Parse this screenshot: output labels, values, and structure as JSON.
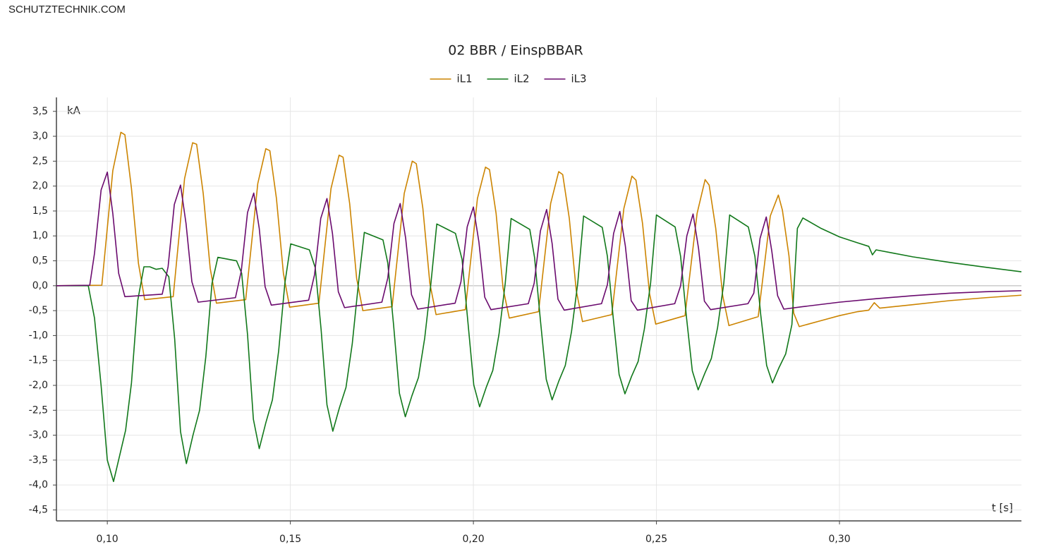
{
  "header": "SCHUTZTECHNIK.COM",
  "chart_data": {
    "type": "line",
    "title": "02 BBR / EinspBBAR",
    "y_label": "kA",
    "x_label": "t [s]",
    "grid": true,
    "legend": "top",
    "xlim": [
      0.0861,
      0.3497
    ],
    "ylim": [
      -4.72,
      3.78
    ],
    "xticks": [
      {
        "value": 0.1,
        "label": "0,10"
      },
      {
        "value": 0.15,
        "label": "0,15"
      },
      {
        "value": 0.2,
        "label": "0,20"
      },
      {
        "value": 0.25,
        "label": "0,25"
      },
      {
        "value": 0.3,
        "label": "0,30"
      }
    ],
    "yticks": [
      {
        "value": -4.5,
        "label": "-4,5"
      },
      {
        "value": -4,
        "label": "-4,0"
      },
      {
        "value": -3.5,
        "label": "-3,5"
      },
      {
        "value": -3,
        "label": "-3,0"
      },
      {
        "value": -2.5,
        "label": "-2,5"
      },
      {
        "value": -2,
        "label": "-2,0"
      },
      {
        "value": -1.5,
        "label": "-1,5"
      },
      {
        "value": -1,
        "label": "-1,0"
      },
      {
        "value": -0.5,
        "label": "-0,5"
      },
      {
        "value": 0,
        "label": "0,0"
      },
      {
        "value": 0.5,
        "label": "0,5"
      },
      {
        "value": 1,
        "label": "1,0"
      },
      {
        "value": 1.5,
        "label": "1,5"
      },
      {
        "value": 2,
        "label": "2,0"
      },
      {
        "value": 2.5,
        "label": "2,5"
      },
      {
        "value": 3,
        "label": "3,0"
      },
      {
        "value": 3.5,
        "label": "3,5"
      }
    ],
    "series": [
      {
        "name": "iL1",
        "color": "#cc8400",
        "x": [
          0.0861,
          0.0985,
          0.1015,
          0.1037,
          0.1048,
          0.1066,
          0.1085,
          0.1102,
          0.118,
          0.1211,
          0.1233,
          0.1244,
          0.1262,
          0.1281,
          0.1298,
          0.1378,
          0.1411,
          0.1433,
          0.1444,
          0.1462,
          0.1481,
          0.1498,
          0.1578,
          0.1611,
          0.1633,
          0.1644,
          0.1662,
          0.1681,
          0.1698,
          0.1778,
          0.1811,
          0.1833,
          0.1844,
          0.1862,
          0.1881,
          0.1898,
          0.1978,
          0.2011,
          0.2033,
          0.2044,
          0.2062,
          0.2081,
          0.2098,
          0.2178,
          0.2211,
          0.2233,
          0.2244,
          0.2262,
          0.2281,
          0.2298,
          0.2378,
          0.2411,
          0.2433,
          0.2444,
          0.2462,
          0.2481,
          0.2498,
          0.2578,
          0.2611,
          0.2633,
          0.2644,
          0.2662,
          0.2681,
          0.2698,
          0.2778,
          0.2811,
          0.2833,
          0.2844,
          0.2862,
          0.2875,
          0.289,
          0.295,
          0.3,
          0.305,
          0.308,
          0.3095,
          0.311,
          0.32,
          0.33,
          0.34,
          0.3497
        ],
        "values": [
          0,
          0.01,
          2.31,
          3.08,
          3.03,
          1.95,
          0.45,
          -0.28,
          -0.22,
          2.15,
          2.87,
          2.84,
          1.85,
          0.35,
          -0.35,
          -0.28,
          2.05,
          2.75,
          2.71,
          1.75,
          0.25,
          -0.43,
          -0.35,
          1.95,
          2.62,
          2.58,
          1.65,
          0.15,
          -0.5,
          -0.42,
          1.85,
          2.5,
          2.45,
          1.55,
          0.05,
          -0.58,
          -0.48,
          1.75,
          2.38,
          2.33,
          1.45,
          -0.05,
          -0.65,
          -0.52,
          1.65,
          2.29,
          2.23,
          1.35,
          -0.1,
          -0.72,
          -0.58,
          1.55,
          2.2,
          2.12,
          1.25,
          -0.15,
          -0.77,
          -0.6,
          1.45,
          2.13,
          2.02,
          1.15,
          -0.2,
          -0.8,
          -0.62,
          1.4,
          1.82,
          1.52,
          0.6,
          -0.55,
          -0.82,
          -0.7,
          -0.6,
          -0.52,
          -0.49,
          -0.34,
          -0.45,
          -0.38,
          -0.3,
          -0.24,
          -0.19
        ]
      },
      {
        "name": "iL2",
        "color": "#11781a",
        "x": [
          0.0861,
          0.0948,
          0.0965,
          0.0983,
          0.1,
          0.1017,
          0.1034,
          0.105,
          0.1066,
          0.1083,
          0.11,
          0.1116,
          0.1133,
          0.115,
          0.1168,
          0.1184,
          0.12,
          0.1216,
          0.1234,
          0.1252,
          0.1269,
          0.1286,
          0.1302,
          0.1353,
          0.1367,
          0.1383,
          0.1399,
          0.1415,
          0.1433,
          0.1451,
          0.1468,
          0.1485,
          0.1501,
          0.1552,
          0.1568,
          0.1584,
          0.16,
          0.1616,
          0.1634,
          0.1652,
          0.1669,
          0.1686,
          0.1702,
          0.1753,
          0.1766,
          0.1782,
          0.1798,
          0.1814,
          0.1832,
          0.185,
          0.1867,
          0.1884,
          0.19,
          0.1951,
          0.1969,
          0.1985,
          0.2001,
          0.2017,
          0.2035,
          0.2053,
          0.207,
          0.2087,
          0.2103,
          0.2154,
          0.2167,
          0.2183,
          0.2199,
          0.2215,
          0.2233,
          0.2251,
          0.2268,
          0.2285,
          0.2301,
          0.2352,
          0.2366,
          0.2382,
          0.2398,
          0.2414,
          0.2432,
          0.245,
          0.2467,
          0.2484,
          0.25,
          0.2551,
          0.2566,
          0.2582,
          0.2598,
          0.2614,
          0.2632,
          0.265,
          0.2667,
          0.2684,
          0.27,
          0.2751,
          0.2769,
          0.2785,
          0.2801,
          0.2817,
          0.2835,
          0.2853,
          0.287,
          0.2885,
          0.29,
          0.295,
          0.3,
          0.305,
          0.308,
          0.309,
          0.31,
          0.315,
          0.32,
          0.33,
          0.34,
          0.3497
        ],
        "values": [
          0,
          0,
          -0.65,
          -2.0,
          -3.5,
          -3.93,
          -3.4,
          -2.9,
          -1.95,
          -0.3,
          0.38,
          0.38,
          0.33,
          0.35,
          0.18,
          -1.07,
          -2.93,
          -3.57,
          -3.0,
          -2.5,
          -1.43,
          0.05,
          0.57,
          0.5,
          0.25,
          -0.98,
          -2.68,
          -3.27,
          -2.75,
          -2.29,
          -1.31,
          0.05,
          0.84,
          0.72,
          0.36,
          -0.88,
          -2.39,
          -2.92,
          -2.45,
          -2.04,
          -1.17,
          0.05,
          1.07,
          0.92,
          0.46,
          -0.79,
          -2.16,
          -2.63,
          -2.21,
          -1.84,
          -1.05,
          0.05,
          1.24,
          1.05,
          0.53,
          -0.73,
          -1.99,
          -2.43,
          -2.04,
          -1.7,
          -0.97,
          0.05,
          1.35,
          1.13,
          0.57,
          -0.69,
          -1.88,
          -2.29,
          -1.92,
          -1.6,
          -0.92,
          0.05,
          1.4,
          1.17,
          0.59,
          -0.65,
          -1.78,
          -2.17,
          -1.82,
          -1.52,
          -0.87,
          0.05,
          1.42,
          1.18,
          0.59,
          -0.63,
          -1.71,
          -2.09,
          -1.76,
          -1.46,
          -0.84,
          0.05,
          1.42,
          1.18,
          0.59,
          -0.59,
          -1.6,
          -1.95,
          -1.64,
          -1.37,
          -0.78,
          1.15,
          1.36,
          1.15,
          0.98,
          0.86,
          0.79,
          0.62,
          0.72,
          0.65,
          0.58,
          0.47,
          0.37,
          0.28
        ]
      },
      {
        "name": "iL3",
        "color": "#6a0a6e",
        "x": [
          0.0861,
          0.0952,
          0.0965,
          0.0983,
          0.1,
          0.1015,
          0.1031,
          0.1048,
          0.115,
          0.1166,
          0.1183,
          0.12,
          0.1215,
          0.1231,
          0.1248,
          0.135,
          0.1366,
          0.1383,
          0.14,
          0.1415,
          0.1431,
          0.1448,
          0.155,
          0.1566,
          0.1583,
          0.16,
          0.1615,
          0.1631,
          0.1648,
          0.175,
          0.1766,
          0.1783,
          0.18,
          0.1815,
          0.1831,
          0.1848,
          0.195,
          0.1966,
          0.1983,
          0.2,
          0.2015,
          0.2031,
          0.2048,
          0.215,
          0.2166,
          0.2183,
          0.22,
          0.2215,
          0.2231,
          0.2248,
          0.235,
          0.2366,
          0.2383,
          0.24,
          0.2415,
          0.2431,
          0.2448,
          0.255,
          0.2566,
          0.2583,
          0.26,
          0.2615,
          0.2631,
          0.2648,
          0.275,
          0.2766,
          0.2783,
          0.28,
          0.2815,
          0.2831,
          0.2848,
          0.29,
          0.3,
          0.31,
          0.32,
          0.33,
          0.34,
          0.3497
        ],
        "values": [
          0,
          0.01,
          0.65,
          1.92,
          2.28,
          1.45,
          0.25,
          -0.22,
          -0.17,
          0.38,
          1.63,
          2.02,
          1.25,
          0.08,
          -0.33,
          -0.24,
          0.3,
          1.47,
          1.86,
          1.15,
          -0.02,
          -0.39,
          -0.29,
          0.22,
          1.35,
          1.75,
          1.05,
          -0.12,
          -0.44,
          -0.33,
          0.15,
          1.25,
          1.65,
          0.95,
          -0.18,
          -0.47,
          -0.35,
          0.08,
          1.18,
          1.58,
          0.88,
          -0.23,
          -0.48,
          -0.36,
          0.05,
          1.1,
          1.53,
          0.85,
          -0.27,
          -0.49,
          -0.36,
          0.02,
          1.05,
          1.49,
          0.8,
          -0.3,
          -0.49,
          -0.36,
          0,
          1.0,
          1.44,
          0.75,
          -0.31,
          -0.48,
          -0.36,
          -0.15,
          0.95,
          1.38,
          0.7,
          -0.2,
          -0.47,
          -0.42,
          -0.33,
          -0.26,
          -0.2,
          -0.15,
          -0.12,
          -0.1
        ]
      }
    ]
  }
}
